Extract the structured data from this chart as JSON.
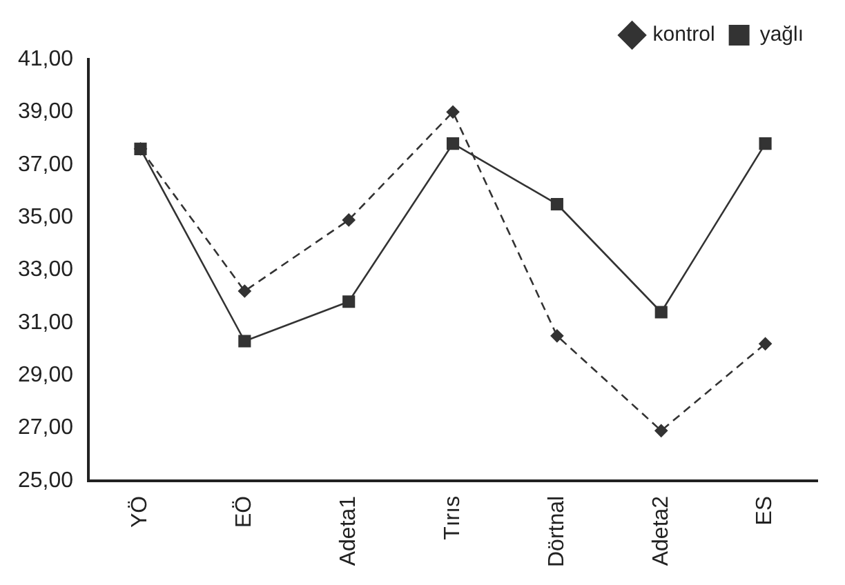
{
  "chart_data": {
    "type": "line",
    "categories": [
      "YÖ",
      "EÖ",
      "Adeta1",
      "Tırıs",
      "Dörtnal",
      "Adeta2",
      "ES"
    ],
    "series": [
      {
        "name": "kontrol",
        "color": "#333333",
        "marker": "diamond",
        "line_style": "dashed",
        "values": [
          37.6,
          32.2,
          34.9,
          39.0,
          30.5,
          26.9,
          30.2
        ]
      },
      {
        "name": "yağlı",
        "color": "#333333",
        "marker": "square",
        "line_style": "solid",
        "values": [
          37.6,
          30.3,
          31.8,
          37.8,
          35.5,
          31.4,
          37.8
        ]
      }
    ],
    "ylim": [
      25,
      41
    ],
    "yticks": [
      {
        "value": 25,
        "label": "25,00"
      },
      {
        "value": 27,
        "label": "27,00"
      },
      {
        "value": 29,
        "label": "29,00"
      },
      {
        "value": 31,
        "label": "31,00"
      },
      {
        "value": 33,
        "label": "33,00"
      },
      {
        "value": 35,
        "label": "35,00"
      },
      {
        "value": 37,
        "label": "37,00"
      },
      {
        "value": 39,
        "label": "39,00"
      },
      {
        "value": 41,
        "label": "41,00"
      }
    ],
    "grid": false,
    "legend": "top right"
  }
}
